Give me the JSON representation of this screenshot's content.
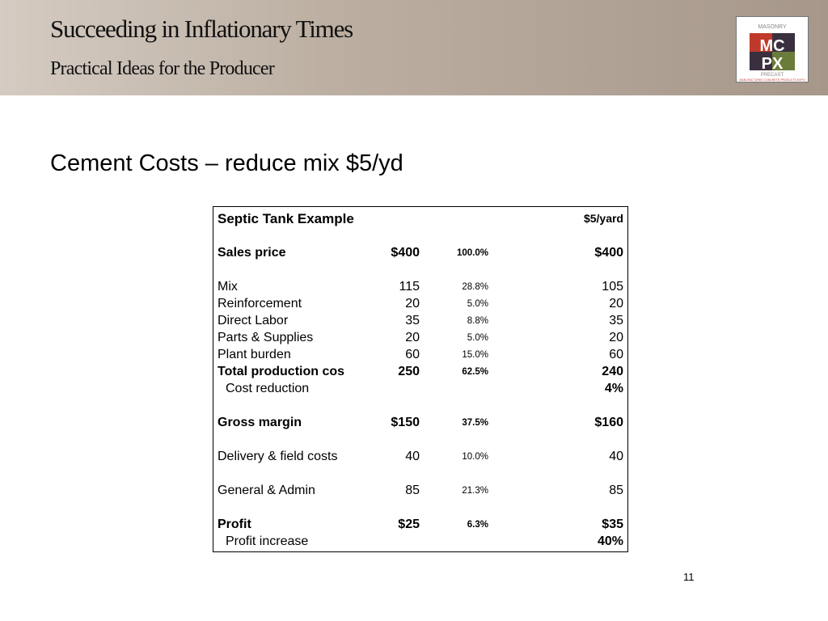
{
  "header": {
    "title": "Succeeding in Inflationary Times",
    "subtitle": "Practical Ideas for the Producer",
    "logo": {
      "top": "MASONRY",
      "left_letters": "MC",
      "right_letters": "PX",
      "bottom": "PRECAST",
      "footer": "MANUFACTURED CONCRETE PRODUCTS EXPO"
    }
  },
  "slide": {
    "heading": "Cement Costs – reduce mix $5/yd",
    "number": "11"
  },
  "table": {
    "groups": [
      [
        {
          "label": "Septic Tank Example",
          "value": "$5/yard",
          "bold": true,
          "large": true
        }
      ],
      [
        {
          "label": "Sales price",
          "amount": "$400",
          "percent": "100.0%",
          "value": "$400",
          "bold": true
        }
      ],
      [
        {
          "label": "Mix",
          "amount": "115",
          "percent": "28.8%",
          "value": "105"
        },
        {
          "label": "Reinforcement",
          "amount": "20",
          "percent": "5.0%",
          "value": "20"
        },
        {
          "label": "Direct Labor",
          "amount": "35",
          "percent": "8.8%",
          "value": "35"
        },
        {
          "label": "Parts & Supplies",
          "amount": "20",
          "percent": "5.0%",
          "value": "20"
        },
        {
          "label": "Plant burden",
          "amount": "60",
          "percent": "15.0%",
          "value": "60"
        },
        {
          "label": "Total production cos",
          "amount": "250",
          "percent": "62.5%",
          "value": "240",
          "bold": true
        },
        {
          "label": "Cost reduction",
          "value": "4%",
          "indent": true
        }
      ],
      [
        {
          "label": "Gross margin",
          "amount": "$150",
          "percent": "37.5%",
          "value": "$160",
          "bold": true
        }
      ],
      [
        {
          "label": "Delivery & field costs",
          "amount": "40",
          "percent": "10.0%",
          "value": "40"
        }
      ],
      [
        {
          "label": "General & Admin",
          "amount": "85",
          "percent": "21.3%",
          "value": "85"
        }
      ],
      [
        {
          "label": "Profit",
          "amount": "$25",
          "percent": "6.3%",
          "value": "$35",
          "bold": true
        },
        {
          "label": "Profit increase",
          "value": "40%",
          "indent": true
        }
      ]
    ]
  }
}
